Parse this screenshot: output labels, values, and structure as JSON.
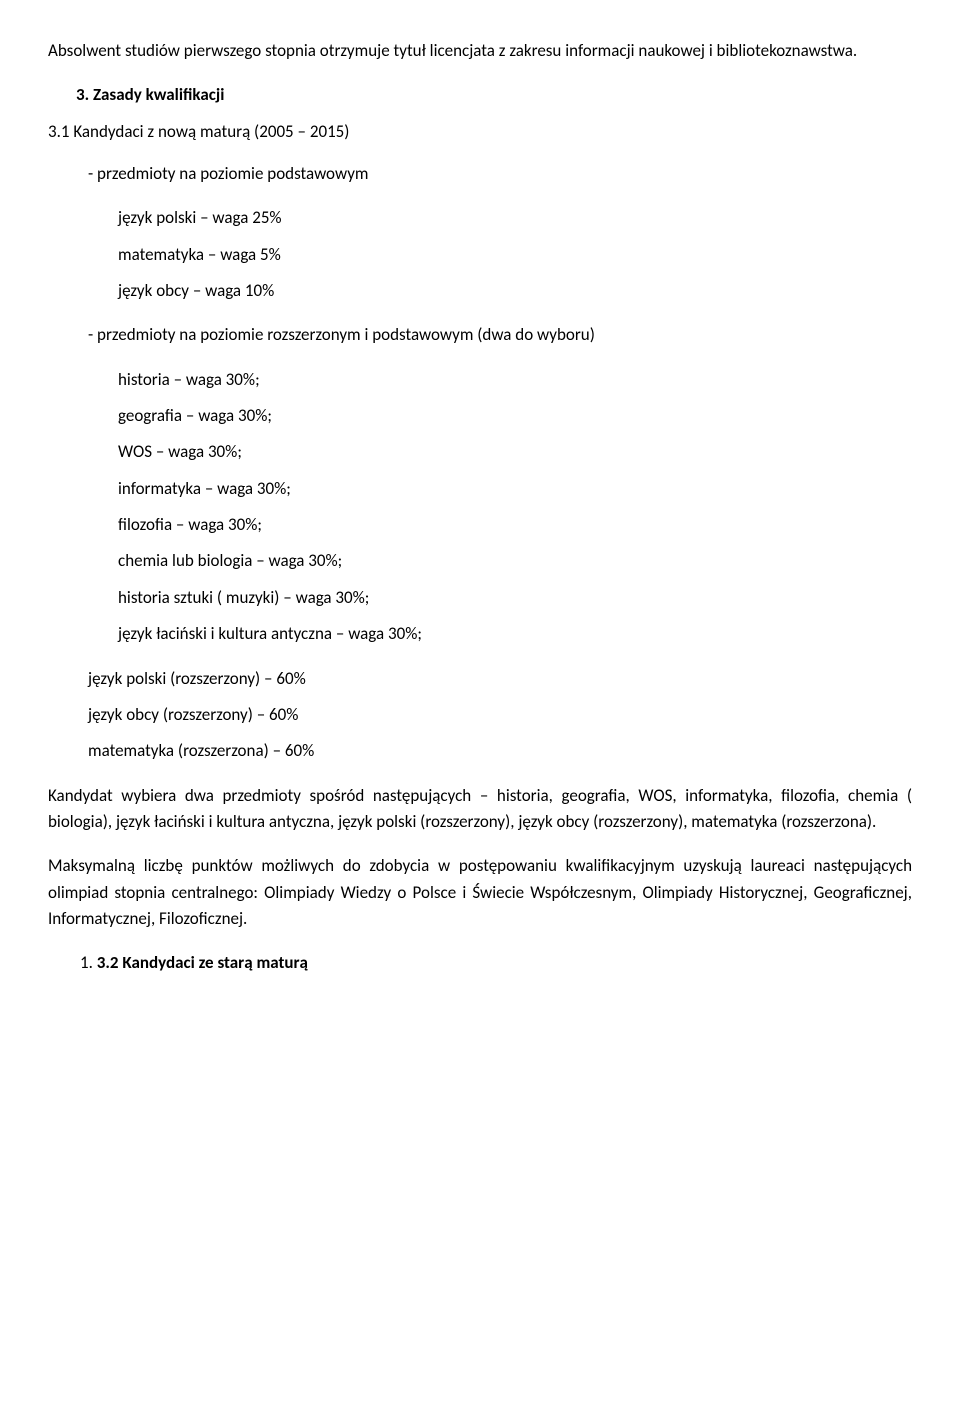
{
  "intro": "Absolwent studiów pierwszego stopnia otrzymuje tytuł licencjata z zakresu informacji naukowej i bibliotekoznawstwa.",
  "section_heading": "3.   Zasady kwalifikacji",
  "subsection_heading": "3.1 Kandydaci z nową maturą (2005 – 2015)",
  "basic_label": "- przedmioty na poziomie podstawowym",
  "basic_items": [
    "język polski – waga 25%",
    "matematyka – waga 5%",
    "język obcy – waga 10%"
  ],
  "extended_label": "- przedmioty na poziomie rozszerzonym i podstawowym (dwa do wyboru)",
  "extended_items": [
    "historia – waga 30%;",
    "geografia – waga 30%;",
    "WOS –  waga 30%;",
    "informatyka – waga 30%;",
    "filozofia – waga 30%;",
    "chemia lub biologia – waga  30%;",
    "historia sztuki ( muzyki) – waga 30%;",
    "język łaciński  i kultura antyczna – waga 30%;"
  ],
  "mid_items": [
    "język polski (rozszerzony) –  60%",
    " język obcy (rozszerzony) –  60%",
    "matematyka (rozszerzona) –  60%"
  ],
  "para_candidate": "Kandydat wybiera dwa przedmioty spośród następujących – historia, geografia, WOS, informatyka, filozofia, chemia ( biologia), język łaciński  i kultura antyczna,  język polski (rozszerzony), język obcy (rozszerzony), matematyka (rozszerzona).",
  "para_max": "Maksymalną liczbę punktów możliwych do zdobycia w postępowaniu kwalifikacyjnym uzyskują laureaci następujących olimpiad stopnia centralnego: Olimpiady Wiedzy o Polsce i Świecie Współczesnym, Olimpiady Historycznej, Geograficznej, Informatycznej, Filozoficznej.",
  "numbered_prefix": "1.   ",
  "numbered_bold": "3.2 Kandydaci ze starą maturą"
}
